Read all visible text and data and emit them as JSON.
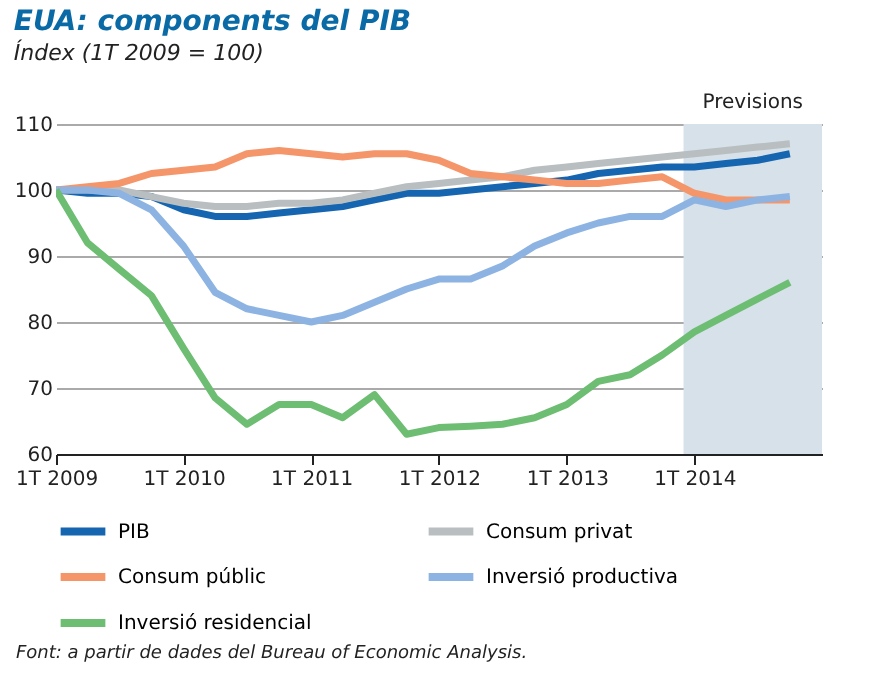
{
  "chart_data": {
    "type": "line",
    "title": "EUA: components del PIB",
    "subtitle": "Índex (1T 2009 = 100)",
    "x": [
      "2009-01",
      "2009-04",
      "2009-07",
      "2009-10",
      "2010-01",
      "2010-04",
      "2010-07",
      "2010-10",
      "2011-01",
      "2011-04",
      "2011-07",
      "2011-10",
      "2012-01",
      "2012-04",
      "2012-07",
      "2012-10",
      "2013-01",
      "2013-04",
      "2013-07",
      "2013-10",
      "2014-01",
      "2014-04",
      "2014-07",
      "2014-10"
    ],
    "series": [
      {
        "name": "PIB",
        "color": "#1565b0",
        "values": [
          100,
          99.5,
          99.5,
          99,
          97,
          96,
          96,
          96.5,
          97,
          97.5,
          98.5,
          99.5,
          99.5,
          100,
          100.5,
          101,
          101.5,
          102.5,
          103,
          103.5,
          103.5,
          104,
          104.5,
          105.5
        ]
      },
      {
        "name": "Consum privat",
        "color": "#b9bec1",
        "values": [
          100,
          100,
          100,
          99,
          98,
          97.5,
          97.5,
          98,
          98,
          98.5,
          99.5,
          100.5,
          101,
          101.5,
          102,
          103,
          103.5,
          104,
          104.5,
          105,
          105.5,
          106,
          106.5,
          107
        ]
      },
      {
        "name": "Consum públic",
        "color": "#f4956a",
        "values": [
          100,
          100.5,
          101,
          102.5,
          103,
          103.5,
          105.5,
          106,
          105.5,
          105,
          105.5,
          105.5,
          104.5,
          102.5,
          102,
          101.5,
          101,
          101,
          101.5,
          102,
          99.5,
          98.5,
          98.5,
          98.5
        ]
      },
      {
        "name": "Inversió productiva",
        "color": "#8db3e2",
        "values": [
          100,
          100,
          99.5,
          97,
          91.5,
          84.5,
          82,
          81,
          80,
          81,
          83,
          85,
          86.5,
          86.5,
          88.5,
          91.5,
          93.5,
          95,
          96,
          96,
          98.5,
          97.5,
          98.5,
          99
        ]
      },
      {
        "name": "Inversió residencial",
        "color": "#6dbd72",
        "values": [
          100,
          92,
          88,
          84,
          76,
          68.5,
          64.5,
          67.5,
          67.5,
          65.5,
          69,
          63,
          64,
          64.2,
          64.5,
          65.5,
          67.5,
          71,
          72,
          75,
          78.5,
          81,
          83.5,
          86
        ]
      }
    ],
    "xlim": [
      "2009-01",
      "2015-01"
    ],
    "xticks": [
      {
        "value": "2009-01",
        "label": "1T 2009"
      },
      {
        "value": "2010-01",
        "label": "1T 2010"
      },
      {
        "value": "2011-01",
        "label": "1T 2011"
      },
      {
        "value": "2012-01",
        "label": "1T 2012"
      },
      {
        "value": "2013-01",
        "label": "1T 2013"
      },
      {
        "value": "2014-01",
        "label": "1T 2014"
      }
    ],
    "ylim": [
      60,
      110
    ],
    "yticks": [
      60,
      70,
      80,
      90,
      100,
      110
    ],
    "bands": [
      {
        "axis": "x",
        "from": "2013-12",
        "to": "2015-01",
        "label": "Previsions",
        "color": "#d6e1e9"
      }
    ],
    "grid": "y",
    "legend": "bottom",
    "line_style": "solid",
    "marker": "none",
    "annotations": [
      "Font: a partir de dades del Bureau of Economic Analysis."
    ]
  }
}
